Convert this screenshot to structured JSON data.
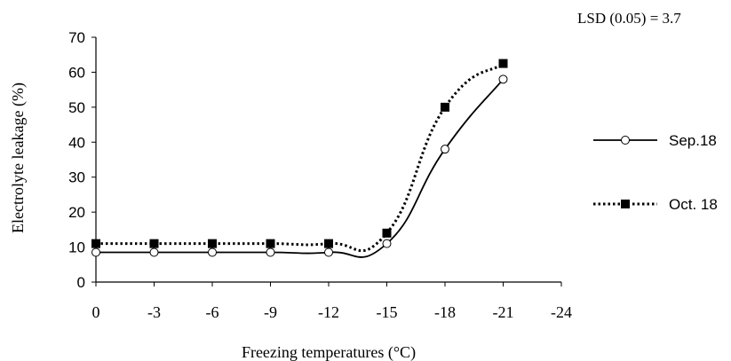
{
  "chart_data": {
    "type": "line",
    "annotation": "LSD (0.05) = 3.7",
    "xlabel": "Freezing temperatures (°C)",
    "ylabel": "Electrolyte leakage (%)",
    "x_ticks": [
      "0",
      "-3",
      "-6",
      "-9",
      "-12",
      "-15",
      "-18",
      "-21",
      "-24"
    ],
    "x": [
      0,
      -3,
      -6,
      -9,
      -12,
      -15,
      -18,
      -21
    ],
    "xlim": [
      0,
      -24
    ],
    "ylim": [
      0,
      70
    ],
    "y_ticks": [
      "0",
      "10",
      "20",
      "30",
      "40",
      "50",
      "60",
      "70"
    ],
    "series": [
      {
        "name": "Sep.18",
        "values": [
          8.5,
          8.5,
          8.5,
          8.5,
          8.5,
          11,
          38,
          58
        ],
        "line": "solid",
        "marker": "open-circle"
      },
      {
        "name": "Oct. 18",
        "values": [
          11,
          11,
          11,
          11,
          11,
          14,
          50,
          62.5
        ],
        "line": "dotted",
        "marker": "filled-square"
      }
    ],
    "legend_position": "right",
    "grid": false
  }
}
